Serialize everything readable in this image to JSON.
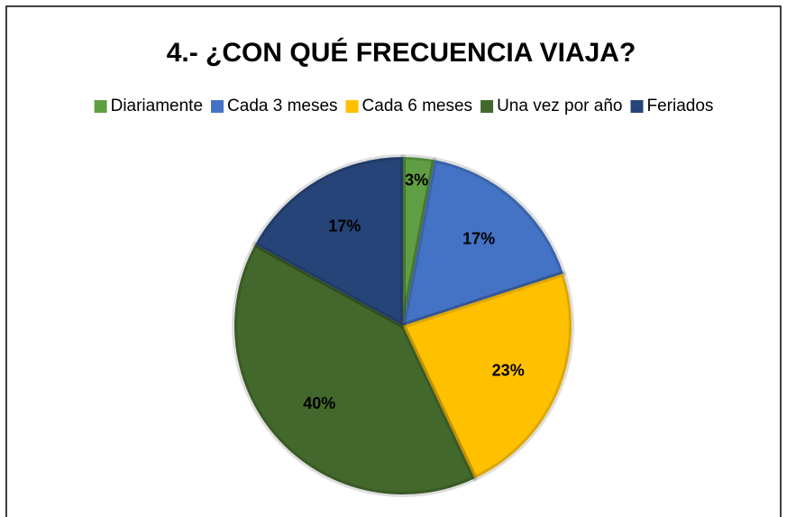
{
  "chart_data": {
    "type": "pie",
    "title": "4.- ¿CON QUÉ FRECUENCIA VIAJA?",
    "categories": [
      "Diariamente",
      "Cada 3 meses",
      "Cada 6 meses",
      "Una vez por año",
      "Feriados"
    ],
    "values": [
      3,
      17,
      23,
      40,
      17
    ],
    "value_labels": [
      "3%",
      "17%",
      "23%",
      "40%",
      "17%"
    ],
    "colors": [
      "#5f9e43",
      "#4472c4",
      "#ffc000",
      "#43682b",
      "#264478"
    ],
    "legend": "top"
  }
}
